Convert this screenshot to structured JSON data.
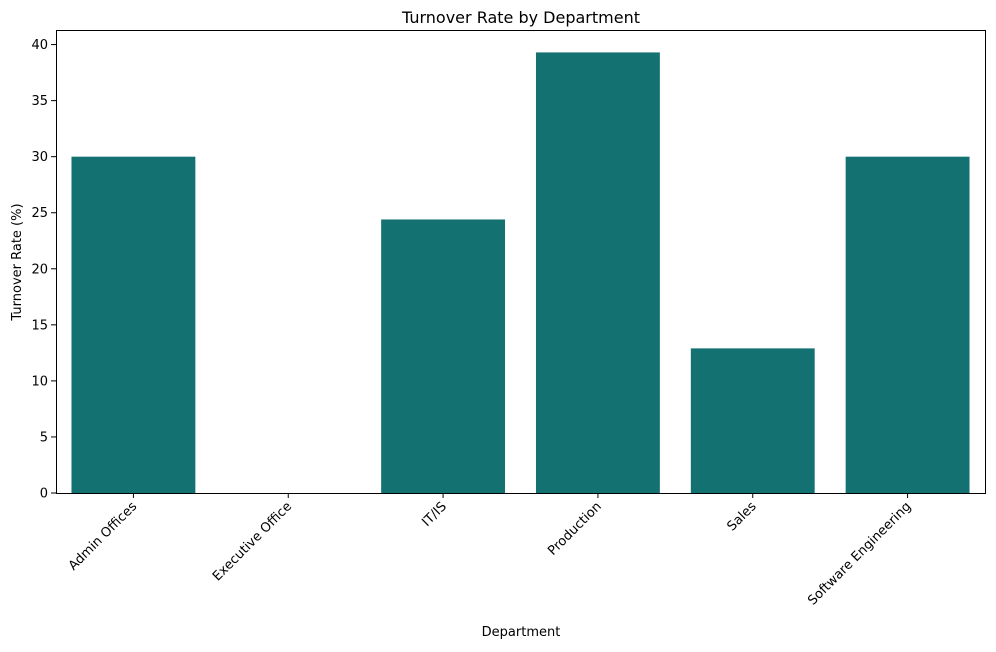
{
  "chart_data": {
    "type": "bar",
    "title": "Turnover Rate by Department",
    "xlabel": "Department",
    "ylabel": "Turnover Rate (%)",
    "categories": [
      "Admin Offices",
      "Executive Office",
      "IT/IS",
      "Production",
      "Sales",
      "Software Engineering"
    ],
    "values": [
      30.0,
      0.0,
      24.4,
      39.3,
      12.9,
      30.0
    ],
    "ylim": [
      0,
      41.3
    ],
    "yticks": [
      0,
      5,
      10,
      15,
      20,
      25,
      30,
      35,
      40
    ],
    "ytick_labels": [
      "0",
      "5",
      "10",
      "15",
      "20",
      "25",
      "30",
      "35",
      "40"
    ],
    "bar_color": "#137171",
    "grid": false,
    "legend": "none"
  }
}
